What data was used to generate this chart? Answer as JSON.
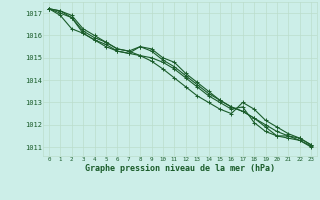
{
  "title": "Graphe pression niveau de la mer (hPa)",
  "background_color": "#cceee8",
  "grid_color": "#bbddcc",
  "line_color": "#1a5c2a",
  "xlabel_color": "#1a5c2a",
  "hours": [
    0,
    1,
    2,
    3,
    4,
    5,
    6,
    7,
    8,
    9,
    10,
    11,
    12,
    13,
    14,
    15,
    16,
    17,
    18,
    19,
    20,
    21,
    22,
    23
  ],
  "series": [
    [
      1017.2,
      1017.1,
      1016.9,
      1016.3,
      1016.0,
      1015.7,
      1015.4,
      1015.3,
      1015.1,
      1015.0,
      1014.8,
      1014.5,
      1014.1,
      1013.7,
      1013.3,
      1013.0,
      1012.7,
      1012.8,
      1012.1,
      1011.7,
      1011.5,
      1011.4,
      1011.3,
      1011.05
    ],
    [
      1017.2,
      1017.1,
      1016.8,
      1016.1,
      1015.8,
      1015.5,
      1015.3,
      1015.2,
      1015.5,
      1015.4,
      1015.0,
      1014.8,
      1014.3,
      1013.9,
      1013.5,
      1013.1,
      1012.8,
      1012.6,
      1012.3,
      1011.9,
      1011.5,
      1011.5,
      1011.4,
      1011.1
    ],
    [
      1017.2,
      1016.9,
      1016.3,
      1016.1,
      1015.8,
      1015.6,
      1015.3,
      1015.2,
      1015.1,
      1014.85,
      1014.5,
      1014.1,
      1013.7,
      1013.3,
      1013.0,
      1012.7,
      1012.5,
      1013.0,
      1012.7,
      1012.2,
      1011.9,
      1011.6,
      1011.4,
      1011.1
    ],
    [
      1017.2,
      1017.0,
      1016.8,
      1016.2,
      1015.9,
      1015.7,
      1015.4,
      1015.3,
      1015.5,
      1015.3,
      1014.9,
      1014.6,
      1014.2,
      1013.8,
      1013.4,
      1013.1,
      1012.8,
      1012.6,
      1012.3,
      1012.0,
      1011.7,
      1011.5,
      1011.3,
      1011.0
    ]
  ],
  "ylim": [
    1010.6,
    1017.5
  ],
  "yticks": [
    1011,
    1012,
    1013,
    1014,
    1015,
    1016,
    1017
  ],
  "xlim": [
    -0.5,
    23.5
  ],
  "xticks": [
    0,
    1,
    2,
    3,
    4,
    5,
    6,
    7,
    8,
    9,
    10,
    11,
    12,
    13,
    14,
    15,
    16,
    17,
    18,
    19,
    20,
    21,
    22,
    23
  ],
  "marker": "+",
  "marker_size": 3.5,
  "line_width": 0.8
}
